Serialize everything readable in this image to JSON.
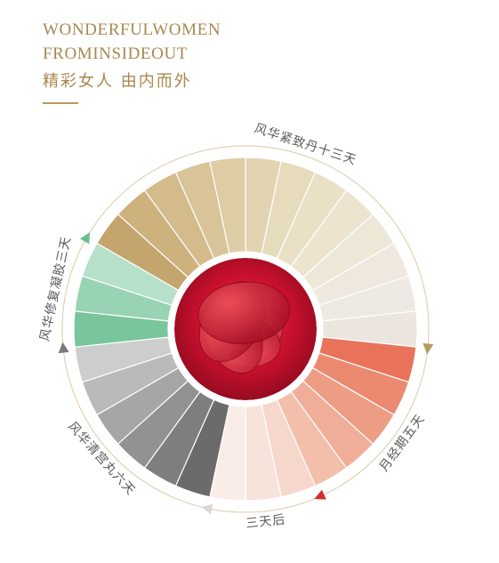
{
  "header": {
    "title_line1": "WONDERFULWOMEN",
    "title_line2": "FROMINSIDEOUT",
    "subtitle": "精彩女人  由内而外"
  },
  "wheel": {
    "center_image": "red-rose",
    "phases": [
      {
        "label": "风华紧致丹十三天",
        "marker": "triangle",
        "marker_color": "#b49b62",
        "colors": [
          "#c4a56d",
          "#cdb27e",
          "#d3bb8c",
          "#d8c498",
          "#ddcca4",
          "#e2d4b0",
          "#e6dbbb",
          "#e9e0c6",
          "#ece4cf",
          "#ede7d8",
          "#eee8df",
          "#eee9e3",
          "#ece5dd"
        ]
      },
      {
        "label": "月经期五天",
        "marker": "triangle",
        "marker_color": "#d42d2d",
        "colors": [
          "#e8735a",
          "#eb8a70",
          "#ee9d85",
          "#f0ae98",
          "#f3bfab"
        ]
      },
      {
        "label": "三天后",
        "marker": "triangle",
        "marker_color": "#d9d9d9",
        "colors": [
          "#f6d7cb",
          "#f8e3da",
          "#faecE6"
        ]
      },
      {
        "label": "风华清宫丸六天",
        "marker": "triangle",
        "marker_color": "#7a7a7a",
        "colors": [
          "#6b6b6b",
          "#7e7e7e",
          "#929292",
          "#a6a6a6",
          "#bababa",
          "#cdcdcd"
        ]
      },
      {
        "label": "风华修复凝胶三天",
        "marker": "triangle",
        "marker_color": "#6dbd93",
        "colors": [
          "#79c59c",
          "#98d3b3",
          "#b6e0c9"
        ]
      }
    ]
  }
}
